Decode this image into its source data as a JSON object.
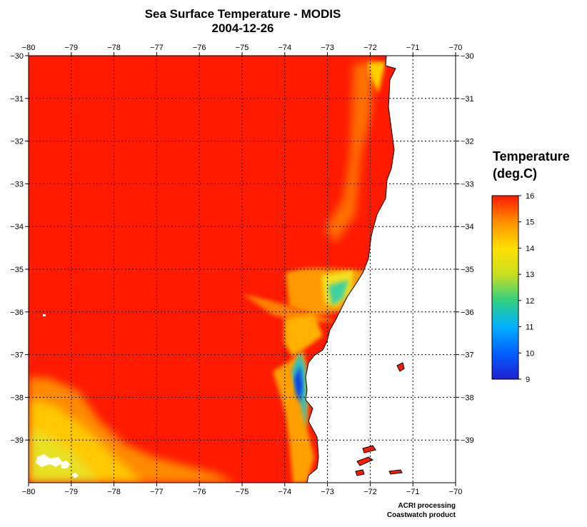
{
  "title": {
    "line1": "Sea Surface Temperature - MODIS",
    "line2": "2004-12-26"
  },
  "map": {
    "lon_range": [
      -80,
      -70
    ],
    "lat_range": [
      -40,
      -30
    ],
    "lon_ticks": [
      -80,
      -79,
      -78,
      -77,
      -76,
      -75,
      -74,
      -73,
      -72,
      -71,
      -70
    ],
    "lat_ticks": [
      -30,
      -31,
      -32,
      -33,
      -34,
      -35,
      -36,
      -37,
      -38,
      -39
    ],
    "grid": "dotted",
    "colors": {
      "land": "#ffffff",
      "coastline": "#000000",
      "warm_water": "#ff1a00"
    }
  },
  "legend": {
    "title_line1": "Temperature",
    "title_line2": "(deg.C)",
    "min": 9,
    "max": 16,
    "ticks": [
      16,
      15,
      14,
      13,
      12,
      11,
      10,
      9
    ],
    "colorscale": [
      "#2020d0",
      "#0060ff",
      "#00b0ff",
      "#30d080",
      "#c8e020",
      "#ffe000",
      "#ff9000",
      "#ff1a00"
    ]
  },
  "credits": {
    "line1": "ACRI processing",
    "line2": "Coastwatch product"
  }
}
